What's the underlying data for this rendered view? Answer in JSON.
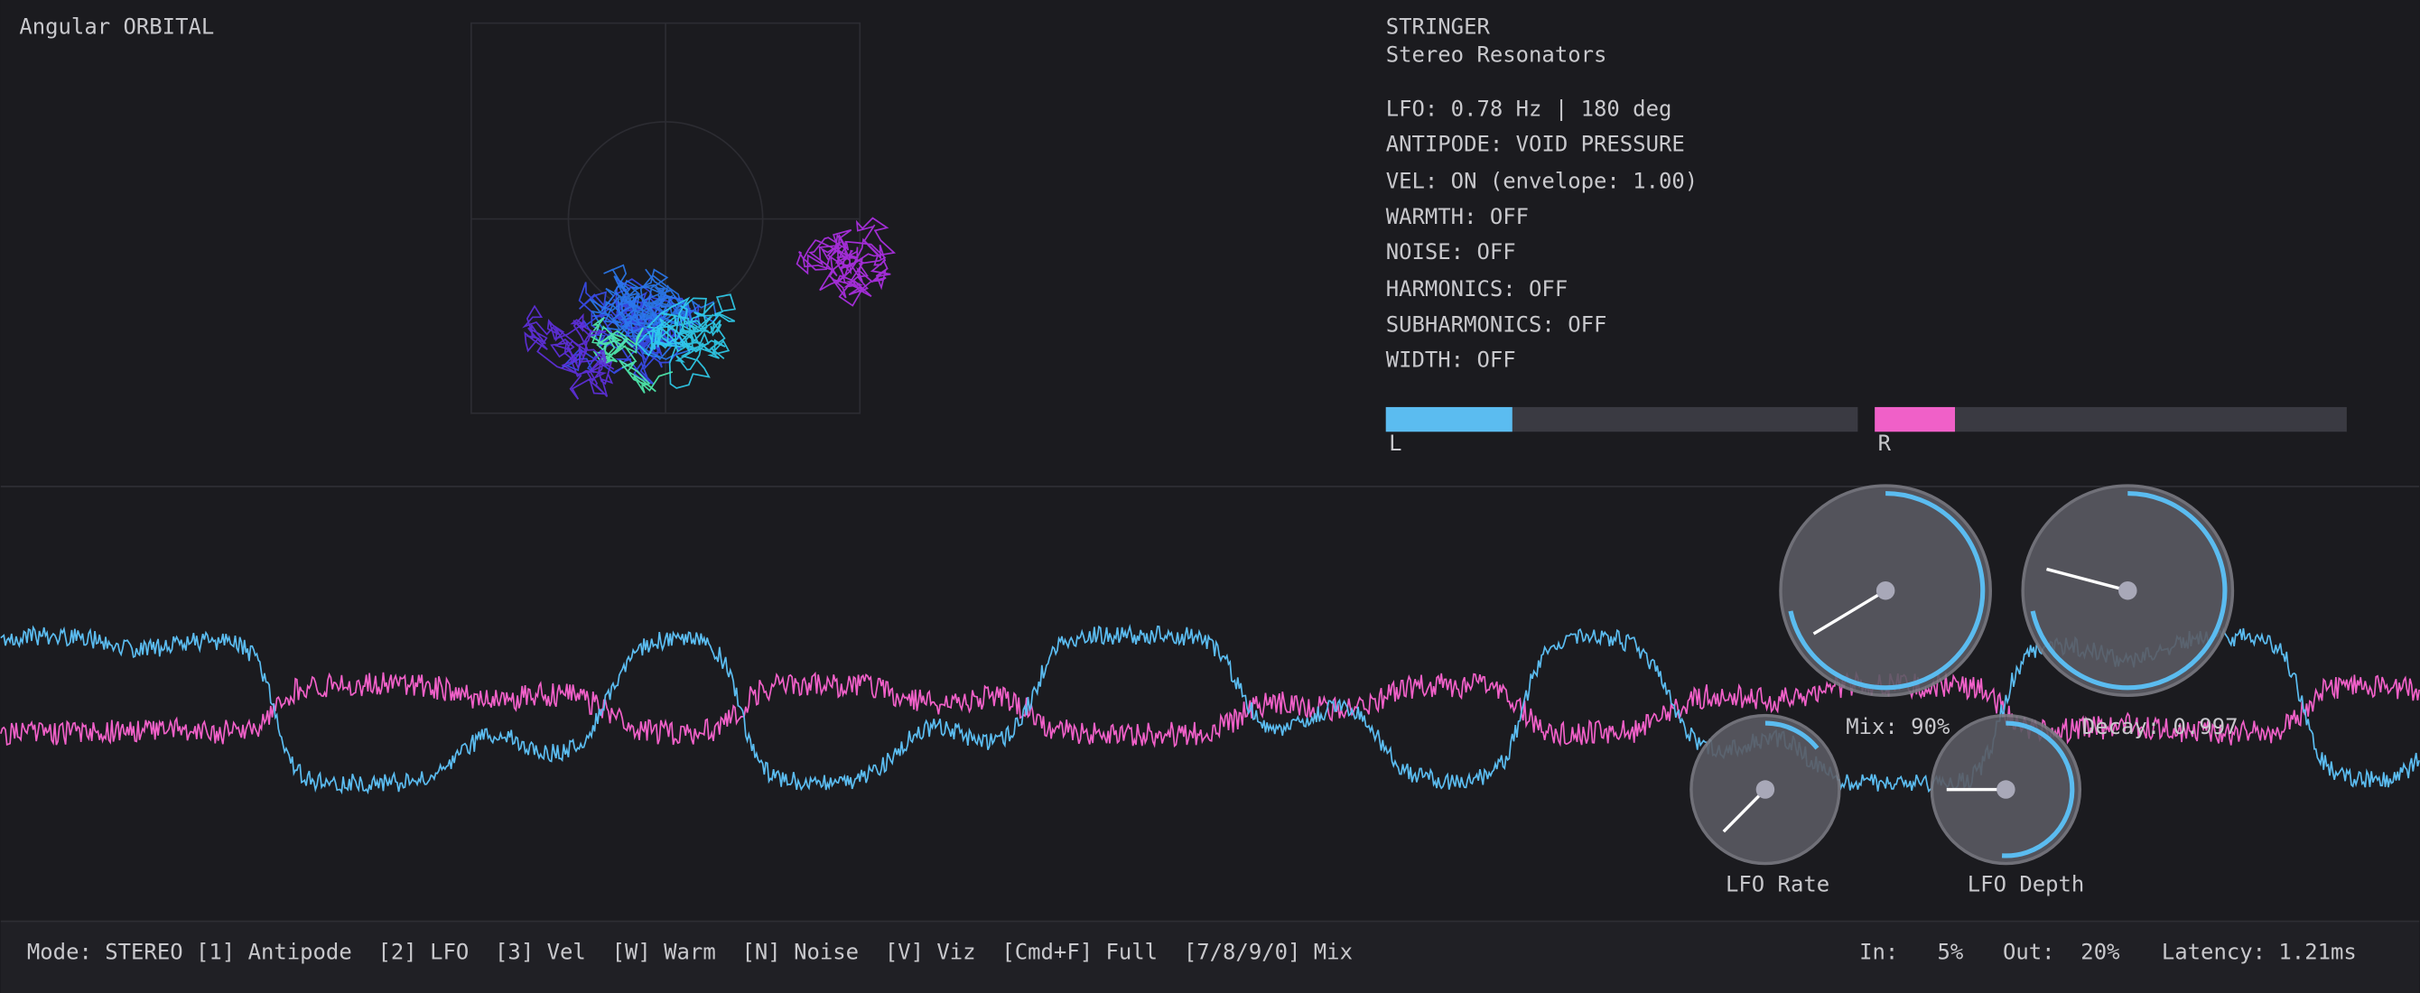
{
  "header": {
    "title": "Angular ORBITAL"
  },
  "info": {
    "title": "STRINGER",
    "subtitle": "Stereo Resonators",
    "lines": [
      "LFO: 0.78 Hz | 180 deg",
      "ANTIPODE: VOID PRESSURE",
      "VEL: ON (envelope: 1.00)",
      "WARMTH: OFF",
      "NOISE: OFF",
      "HARMONICS: OFF",
      "SUBHARMONICS: OFF",
      "WIDTH: OFF"
    ]
  },
  "meters": {
    "left": "L",
    "right": "R"
  },
  "knobs": {
    "mix": "Mix: 90%",
    "decay": "Decay: 0.997",
    "lfo_rate": "LFO Rate",
    "lfo_depth": "LFO Depth"
  },
  "footer": {
    "shortcuts": "Mode: STEREO [1] Antipode  [2] LFO  [3] Vel  [W] Warm  [N] Noise  [V] Viz  [Cmd+F] Full  [7/8/9/0] Mix",
    "input": "In:   5%",
    "output": "Out:  20%",
    "latency": "Latency: 1.21ms"
  }
}
